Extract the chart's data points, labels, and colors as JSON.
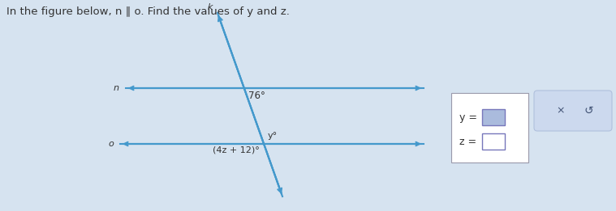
{
  "title": "In the figure below, n ∥ o. Find the values of y and z.",
  "title_fontsize": 9.5,
  "bg_color": "#d6e3f0",
  "line_color": "#4499cc",
  "text_color": "#333333",
  "transversal_label": "k",
  "line_n_label": "n",
  "line_o_label": "o",
  "angle1_label": "76°",
  "angle2_label": "y°",
  "angle3_label": "(4z + 12)°",
  "box_y_label": "y =",
  "box_z_label": "z =",
  "x_button_label": "×",
  "redo_label": "↺",
  "panel_bg": "#ccd9ee",
  "panel_border": "#b0c0dd",
  "box_border": "#9999aa",
  "input_box_color": "#8888cc",
  "input_box_border": "#7777bb"
}
